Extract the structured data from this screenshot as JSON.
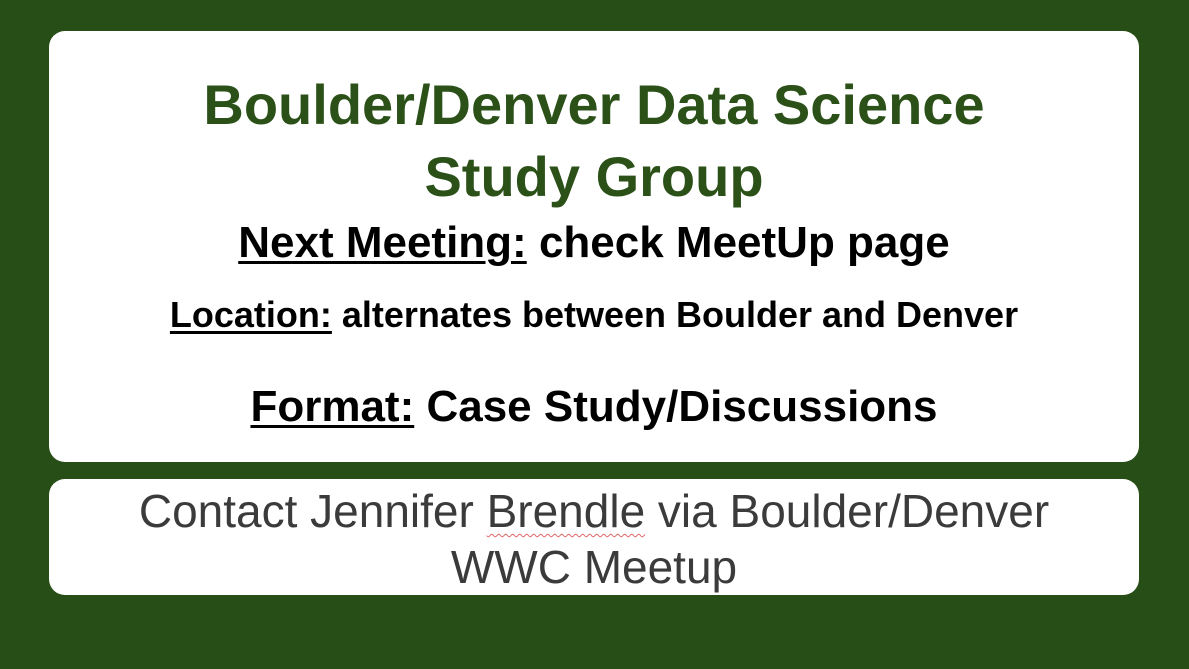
{
  "colors": {
    "background": "#284e17",
    "card": "#ffffff",
    "title": "#2b5119",
    "body_text": "#000000",
    "contact_text": "#3b3b3b",
    "spellcheck": "#e06666"
  },
  "main": {
    "title_line1": "Boulder/Denver Data Science",
    "title_line2": "Study Group",
    "next_meeting": {
      "label": "Next Meeting:",
      "value": " check MeetUp page"
    },
    "location": {
      "label": "Location:",
      "value": " alternates between Boulder and Denver"
    },
    "format": {
      "label": "Format:",
      "value": " Case Study/Discussions"
    }
  },
  "contact": {
    "line1_before": "Contact Jennifer ",
    "line1_flagged": "Brendle",
    "line1_after": " via Boulder/Denver",
    "line2": "WWC Meetup"
  }
}
